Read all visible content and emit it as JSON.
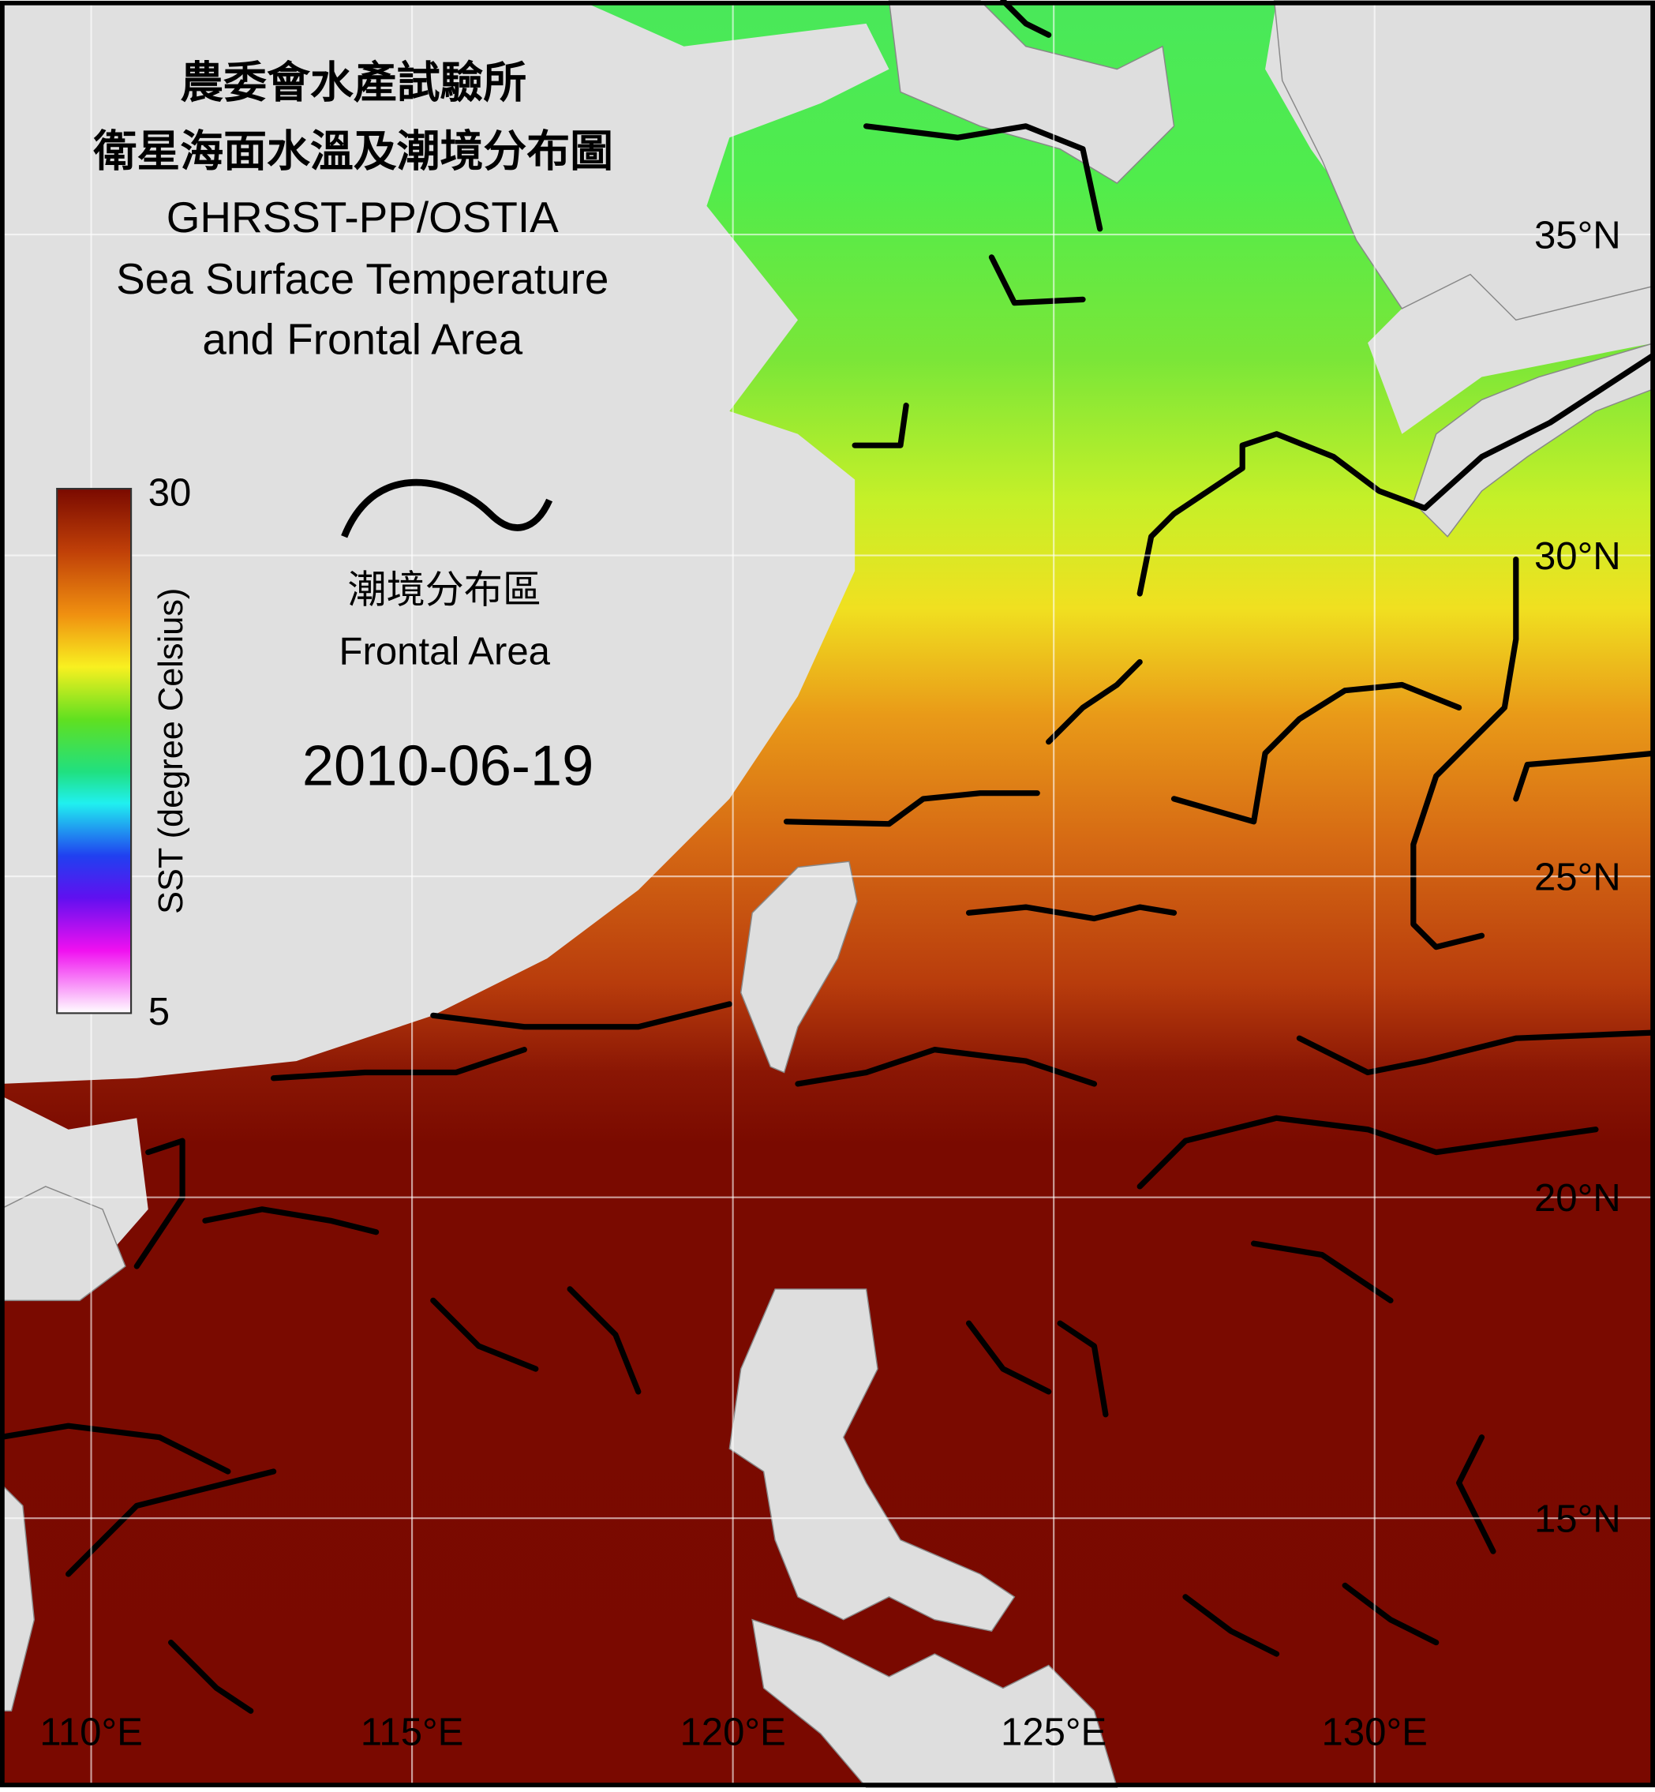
{
  "header": {
    "title_lines": [
      "農委會水產試驗所",
      "衛星海面水溫及潮境分布圖",
      "GHRSST-PP/OSTIA",
      "Sea Surface Temperature",
      "and Frontal Area"
    ]
  },
  "colorbar": {
    "label": "SST (degree Celsius)",
    "max": 30,
    "min": 5
  },
  "legend": {
    "label_zh": "潮境分布區",
    "label_en": "Frontal Area"
  },
  "date": "2010-06-19",
  "grid": {
    "lat": [
      {
        "value": 35,
        "label": "35°N"
      },
      {
        "value": 30,
        "label": "30°N"
      },
      {
        "value": 25,
        "label": "25°N"
      },
      {
        "value": 20,
        "label": "20°N"
      },
      {
        "value": 15,
        "label": "15°N"
      }
    ],
    "lon": [
      {
        "value": 110,
        "label": "110°E"
      },
      {
        "value": 115,
        "label": "115°E"
      },
      {
        "value": 120,
        "label": "120°E"
      },
      {
        "value": 125,
        "label": "125°E"
      },
      {
        "value": 130,
        "label": "130°E"
      }
    ]
  }
}
